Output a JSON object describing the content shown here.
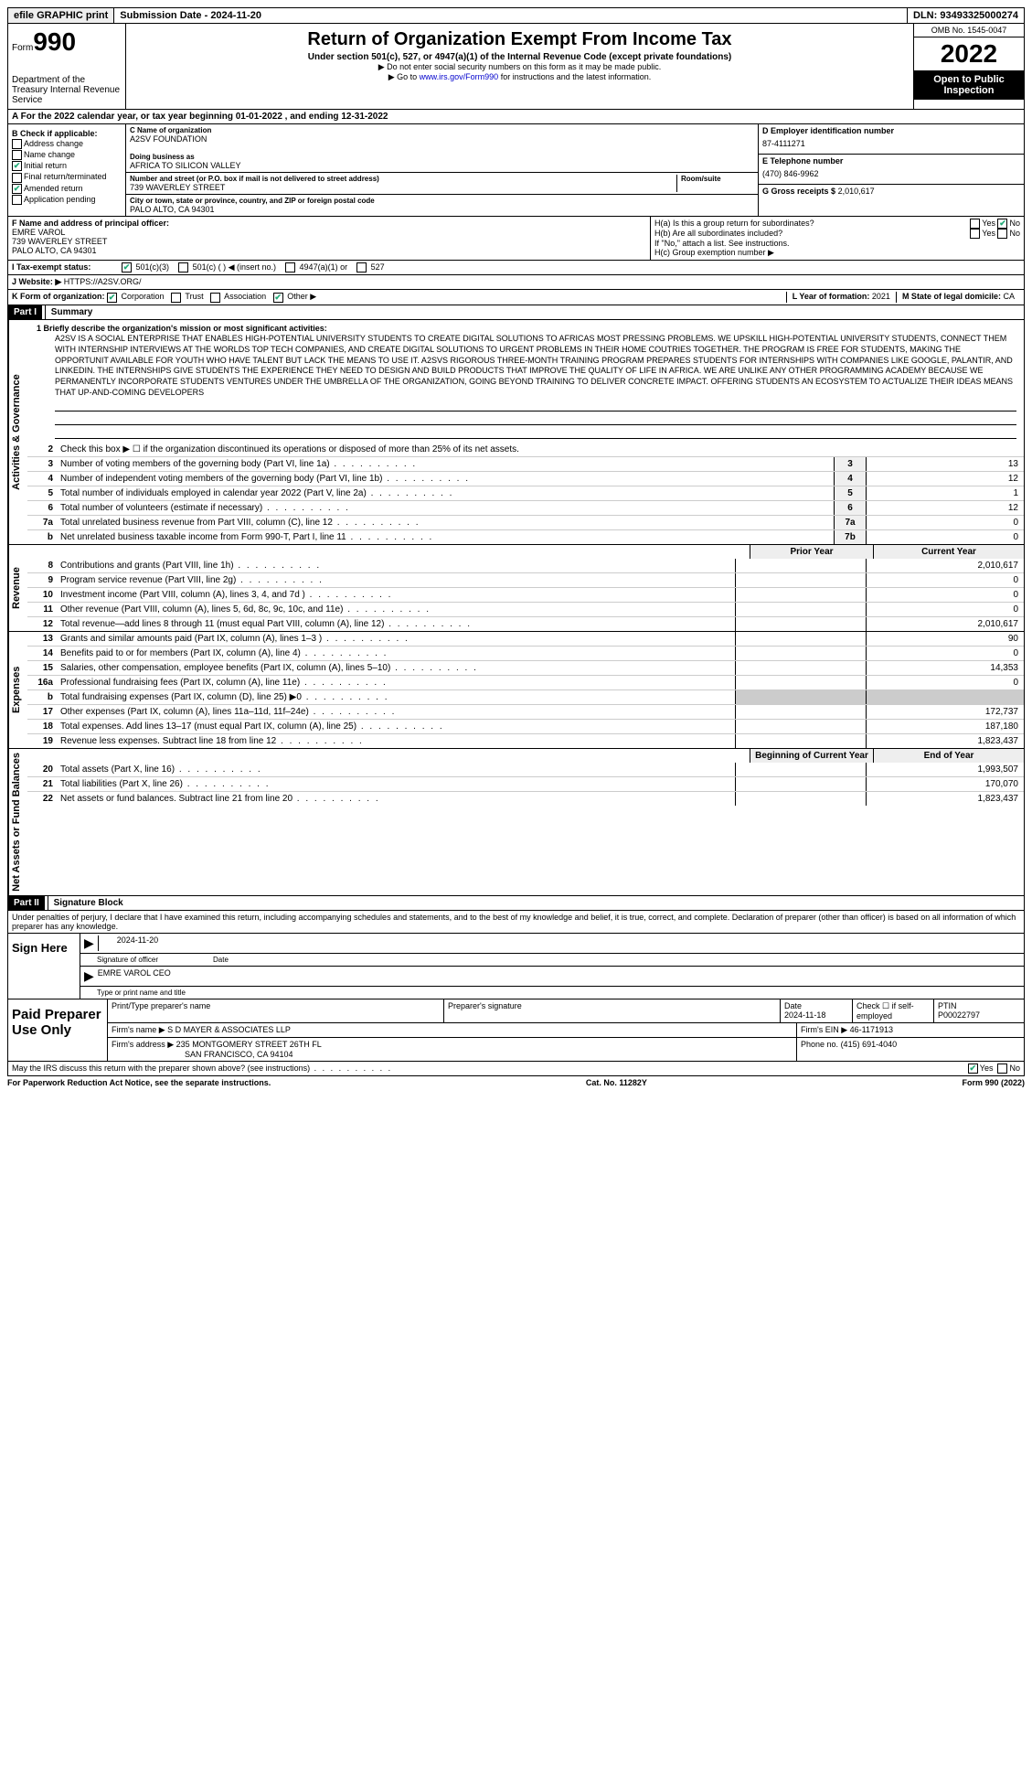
{
  "top": {
    "efile": "efile GRAPHIC print",
    "submission": "Submission Date - 2024-11-20",
    "dln": "DLN: 93493325000274"
  },
  "header": {
    "form": "Form",
    "num": "990",
    "dept": "Department of the Treasury Internal Revenue Service",
    "title": "Return of Organization Exempt From Income Tax",
    "subtitle": "Under section 501(c), 527, or 4947(a)(1) of the Internal Revenue Code (except private foundations)",
    "note1": "▶ Do not enter social security numbers on this form as it may be made public.",
    "note2_pre": "▶ Go to ",
    "note2_link": "www.irs.gov/Form990",
    "note2_post": " for instructions and the latest information.",
    "omb": "OMB No. 1545-0047",
    "year": "2022",
    "open": "Open to Public Inspection"
  },
  "rowA": "A For the 2022 calendar year, or tax year beginning 01-01-2022  , and ending 12-31-2022",
  "boxB": {
    "label": "B Check if applicable:",
    "items": [
      "Address change",
      "Name change",
      "Initial return",
      "Final return/terminated",
      "Amended return",
      "Application pending"
    ],
    "checked": [
      false,
      false,
      true,
      false,
      true,
      false
    ]
  },
  "boxC": {
    "name_label": "C Name of organization",
    "name": "A2SV FOUNDATION",
    "dba_label": "Doing business as",
    "dba": "AFRICA TO SILICON VALLEY",
    "addr_label": "Number and street (or P.O. box if mail is not delivered to street address)",
    "addr": "739 WAVERLEY STREET",
    "room_label": "Room/suite",
    "city_label": "City or town, state or province, country, and ZIP or foreign postal code",
    "city": "PALO ALTO, CA  94301"
  },
  "boxD": {
    "label": "D Employer identification number",
    "val": "87-4111271"
  },
  "boxE": {
    "label": "E Telephone number",
    "val": "(470) 846-9962"
  },
  "boxG": {
    "label": "G Gross receipts $",
    "val": "2,010,617"
  },
  "boxF": {
    "label": "F Name and address of principal officer:",
    "name": "EMRE VAROL",
    "addr1": "739 WAVERLEY STREET",
    "addr2": "PALO ALTO, CA  94301"
  },
  "boxH": {
    "a": "H(a) Is this a group return for subordinates?",
    "a_yes": "Yes",
    "a_no": "No",
    "b": "H(b) Are all subordinates included?",
    "b_note": "If \"No,\" attach a list. See instructions.",
    "c": "H(c) Group exemption number ▶"
  },
  "rowI": {
    "label": "I  Tax-exempt status:",
    "opts": [
      "501(c)(3)",
      "501(c) (  ) ◀ (insert no.)",
      "4947(a)(1) or",
      "527"
    ]
  },
  "rowJ": {
    "label": "J Website: ▶",
    "val": "HTTPS://A2SV.ORG/"
  },
  "rowK": {
    "label": "K Form of organization:",
    "opts": [
      "Corporation",
      "Trust",
      "Association",
      "Other ▶"
    ]
  },
  "rowL": {
    "label": "L Year of formation:",
    "val": "2021"
  },
  "rowM": {
    "label": "M State of legal domicile:",
    "val": "CA"
  },
  "part1": {
    "header": "Part I",
    "title": "Summary"
  },
  "mission_label": "1  Briefly describe the organization's mission or most significant activities:",
  "mission": "A2SV IS A SOCIAL ENTERPRISE THAT ENABLES HIGH-POTENTIAL UNIVERSITY STUDENTS TO CREATE DIGITAL SOLUTIONS TO AFRICAS MOST PRESSING PROBLEMS. WE UPSKILL HIGH-POTENTIAL UNIVERSITY STUDENTS, CONNECT THEM WITH INTERNSHIP INTERVIEWS AT THE WORLDS TOP TECH COMPANIES, AND CREATE DIGITAL SOLUTIONS TO URGENT PROBLEMS IN THEIR HOME COUTRIES TOGETHER. THE PROGRAM IS FREE FOR STUDENTS, MAKING THE OPPORTUNIT AVAILABLE FOR YOUTH WHO HAVE TALENT BUT LACK THE MEANS TO USE IT. A2SVS RIGOROUS THREE-MONTH TRAINING PROGRAM PREPARES STUDENTS FOR INTERNSHIPS WITH COMPANIES LIKE GOOGLE, PALANTIR, AND LINKEDIN. THE INTERNSHIPS GIVE STUDENTS THE EXPERIENCE THEY NEED TO DESIGN AND BUILD PRODUCTS THAT IMPROVE THE QUALITY OF LIFE IN AFRICA. WE ARE UNLIKE ANY OTHER PROGRAMMING ACADEMY BECAUSE WE PERMANENTLY INCORPORATE STUDENTS VENTURES UNDER THE UMBRELLA OF THE ORGANIZATION, GOING BEYOND TRAINING TO DELIVER CONCRETE IMPACT. OFFERING STUDENTS AN ECOSYSTEM TO ACTUALIZE THEIR IDEAS MEANS THAT UP-AND-COMING DEVELOPERS",
  "lines_gov": [
    {
      "n": "2",
      "t": "Check this box ▶ ☐ if the organization discontinued its operations or disposed of more than 25% of its net assets.",
      "b": "",
      "v": ""
    },
    {
      "n": "3",
      "t": "Number of voting members of the governing body (Part VI, line 1a)",
      "b": "3",
      "v": "13"
    },
    {
      "n": "4",
      "t": "Number of independent voting members of the governing body (Part VI, line 1b)",
      "b": "4",
      "v": "12"
    },
    {
      "n": "5",
      "t": "Total number of individuals employed in calendar year 2022 (Part V, line 2a)",
      "b": "5",
      "v": "1"
    },
    {
      "n": "6",
      "t": "Total number of volunteers (estimate if necessary)",
      "b": "6",
      "v": "12"
    },
    {
      "n": "7a",
      "t": "Total unrelated business revenue from Part VIII, column (C), line 12",
      "b": "7a",
      "v": "0"
    },
    {
      "n": "b",
      "t": "Net unrelated business taxable income from Form 990-T, Part I, line 11",
      "b": "7b",
      "v": "0"
    }
  ],
  "rev_hdr": {
    "prior": "Prior Year",
    "curr": "Current Year"
  },
  "lines_rev": [
    {
      "n": "8",
      "t": "Contributions and grants (Part VIII, line 1h)",
      "p": "",
      "c": "2,010,617"
    },
    {
      "n": "9",
      "t": "Program service revenue (Part VIII, line 2g)",
      "p": "",
      "c": "0"
    },
    {
      "n": "10",
      "t": "Investment income (Part VIII, column (A), lines 3, 4, and 7d )",
      "p": "",
      "c": "0"
    },
    {
      "n": "11",
      "t": "Other revenue (Part VIII, column (A), lines 5, 6d, 8c, 9c, 10c, and 11e)",
      "p": "",
      "c": "0"
    },
    {
      "n": "12",
      "t": "Total revenue—add lines 8 through 11 (must equal Part VIII, column (A), line 12)",
      "p": "",
      "c": "2,010,617"
    }
  ],
  "lines_exp": [
    {
      "n": "13",
      "t": "Grants and similar amounts paid (Part IX, column (A), lines 1–3 )",
      "p": "",
      "c": "90"
    },
    {
      "n": "14",
      "t": "Benefits paid to or for members (Part IX, column (A), line 4)",
      "p": "",
      "c": "0"
    },
    {
      "n": "15",
      "t": "Salaries, other compensation, employee benefits (Part IX, column (A), lines 5–10)",
      "p": "",
      "c": "14,353"
    },
    {
      "n": "16a",
      "t": "Professional fundraising fees (Part IX, column (A), line 11e)",
      "p": "",
      "c": "0"
    },
    {
      "n": "b",
      "t": "Total fundraising expenses (Part IX, column (D), line 25) ▶0",
      "p": "grey",
      "c": "grey"
    },
    {
      "n": "17",
      "t": "Other expenses (Part IX, column (A), lines 11a–11d, 11f–24e)",
      "p": "",
      "c": "172,737"
    },
    {
      "n": "18",
      "t": "Total expenses. Add lines 13–17 (must equal Part IX, column (A), line 25)",
      "p": "",
      "c": "187,180"
    },
    {
      "n": "19",
      "t": "Revenue less expenses. Subtract line 18 from line 12",
      "p": "",
      "c": "1,823,437"
    }
  ],
  "net_hdr": {
    "prior": "Beginning of Current Year",
    "curr": "End of Year"
  },
  "lines_net": [
    {
      "n": "20",
      "t": "Total assets (Part X, line 16)",
      "p": "",
      "c": "1,993,507"
    },
    {
      "n": "21",
      "t": "Total liabilities (Part X, line 26)",
      "p": "",
      "c": "170,070"
    },
    {
      "n": "22",
      "t": "Net assets or fund balances. Subtract line 21 from line 20",
      "p": "",
      "c": "1,823,437"
    }
  ],
  "side": {
    "gov": "Activities & Governance",
    "rev": "Revenue",
    "exp": "Expenses",
    "net": "Net Assets or Fund Balances"
  },
  "part2": {
    "header": "Part II",
    "title": "Signature Block"
  },
  "penalties": "Under penalties of perjury, I declare that I have examined this return, including accompanying schedules and statements, and to the best of my knowledge and belief, it is true, correct, and complete. Declaration of preparer (other than officer) is based on all information of which preparer has any knowledge.",
  "sign": {
    "here": "Sign Here",
    "sig_label": "Signature of officer",
    "date": "2024-11-20",
    "date_label": "Date",
    "name": "EMRE VAROL CEO",
    "name_label": "Type or print name and title"
  },
  "paid": {
    "title": "Paid Preparer Use Only",
    "h1": "Print/Type preparer's name",
    "h2": "Preparer's signature",
    "h3": "Date",
    "h3v": "2024-11-18",
    "h4": "Check ☐ if self-employed",
    "h5": "PTIN",
    "h5v": "P00022797",
    "firm_label": "Firm's name  ▶",
    "firm": "S D MAYER & ASSOCIATES LLP",
    "ein_label": "Firm's EIN ▶",
    "ein": "46-1171913",
    "addr_label": "Firm's address ▶",
    "addr1": "235 MONTGOMERY STREET 26TH FL",
    "addr2": "SAN FRANCISCO, CA  94104",
    "phone_label": "Phone no.",
    "phone": "(415) 691-4040"
  },
  "discuss": "May the IRS discuss this return with the preparer shown above? (see instructions)",
  "discuss_yes": "Yes",
  "discuss_no": "No",
  "footer": {
    "l": "For Paperwork Reduction Act Notice, see the separate instructions.",
    "c": "Cat. No. 11282Y",
    "r": "Form 990 (2022)"
  }
}
